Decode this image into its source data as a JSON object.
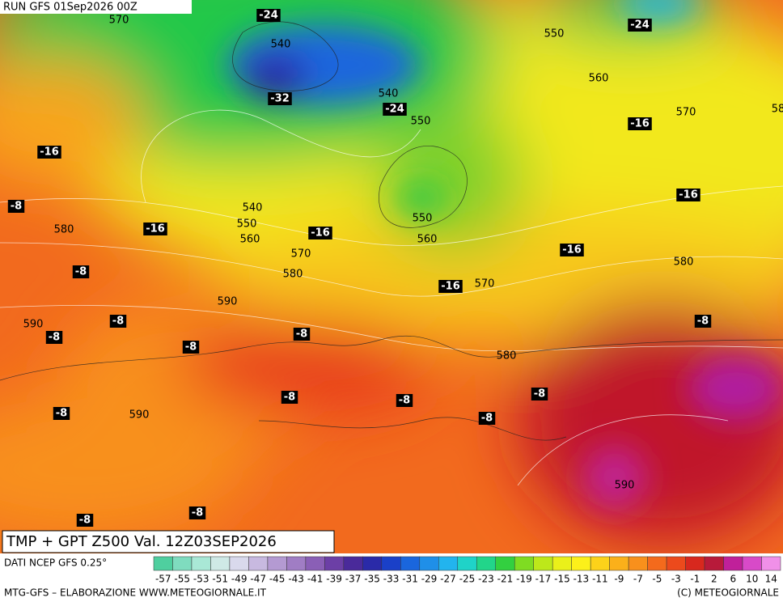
{
  "header": {
    "run": "RUN GFS 01Sep2026 00Z"
  },
  "title": "TMP + GPT Z500 Val. 12Z03SEP2026",
  "source": "DATI NCEP GFS 0.25°",
  "footer": {
    "left": "MTG-GFS – ELABORAZIONE WWW.METEOGIORNALE.IT",
    "right": "(C) METEOGIORNALE"
  },
  "legend": {
    "ticks": [
      -57,
      -55,
      -53,
      -51,
      -49,
      -47,
      -45,
      -43,
      -41,
      -39,
      -37,
      -35,
      -33,
      -31,
      -29,
      -27,
      -25,
      -23,
      -21,
      -19,
      -17,
      -15,
      -13,
      -11,
      -9,
      -7,
      -5,
      -3,
      -1,
      2,
      6,
      10,
      14
    ],
    "colors": [
      "#4fcf9f",
      "#7fdcbf",
      "#a9e8d6",
      "#cfe9e6",
      "#d9d9ec",
      "#c8b9e0",
      "#b49ad2",
      "#a07dc4",
      "#8a5fb6",
      "#6c3fa6",
      "#4a2a9a",
      "#2a2aa8",
      "#1a40c8",
      "#1a66dd",
      "#1f8fe8",
      "#22b4ee",
      "#1fd3c8",
      "#22d58a",
      "#33d040",
      "#7fdc22",
      "#bde81a",
      "#eaf01a",
      "#fcf01a",
      "#fcd21a",
      "#fbb01a",
      "#f8901c",
      "#f46a1c",
      "#ec4a1c",
      "#d8281e",
      "#b81a3a",
      "#c0209a",
      "#d84ac8",
      "#f090e8"
    ]
  },
  "map": {
    "height_labels": [
      "570",
      "540",
      "550",
      "560",
      "540",
      "550",
      "570",
      "58",
      "540",
      "550",
      "560",
      "550",
      "560",
      "570",
      "580",
      "570",
      "580",
      "580",
      "590",
      "590",
      "580",
      "590",
      "590"
    ],
    "temperature_labels": [
      "-24",
      "-24",
      "-32",
      "-24",
      "-16",
      "-16",
      "-16",
      "-8",
      "-16",
      "-16",
      "-16",
      "-8",
      "-16",
      "-8",
      "-8",
      "-8",
      "-8",
      "-8",
      "-8",
      "-8",
      "-8",
      "-8",
      "-8",
      "-8",
      "-8"
    ]
  }
}
